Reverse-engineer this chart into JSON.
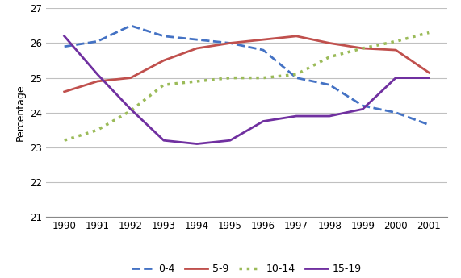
{
  "years": [
    1990,
    1991,
    1992,
    1993,
    1994,
    1995,
    1996,
    1997,
    1998,
    1999,
    2000,
    2001
  ],
  "series": {
    "0-4": [
      25.9,
      26.05,
      26.5,
      26.2,
      26.1,
      26.0,
      25.8,
      25.0,
      24.8,
      24.2,
      24.0,
      23.65
    ],
    "5-9": [
      24.6,
      24.9,
      25.0,
      25.5,
      25.85,
      26.0,
      26.1,
      26.2,
      26.0,
      25.85,
      25.8,
      25.15
    ],
    "10-14": [
      23.2,
      23.5,
      24.05,
      24.8,
      24.9,
      25.0,
      25.0,
      25.1,
      25.6,
      25.85,
      26.05,
      26.3
    ],
    "15-19": [
      26.2,
      25.1,
      24.1,
      23.2,
      23.1,
      23.2,
      23.75,
      23.9,
      23.9,
      24.1,
      25.0,
      25.0
    ]
  },
  "colors": {
    "0-4": "#4472C4",
    "5-9": "#C0504D",
    "10-14": "#9BBB59",
    "15-19": "#7030A0"
  },
  "linestyles": {
    "0-4": "--",
    "5-9": "-",
    "10-14": ":",
    "15-19": "-"
  },
  "linewidths": {
    "0-4": 2.0,
    "5-9": 2.0,
    "10-14": 2.5,
    "15-19": 2.0
  },
  "ylabel": "Percentage",
  "ylim": [
    21,
    27
  ],
  "yticks": [
    21,
    22,
    23,
    24,
    25,
    26,
    27
  ],
  "background_color": "#ffffff",
  "grid_color": "#c0c0c0",
  "legend_order": [
    "0-4",
    "5-9",
    "10-14",
    "15-19"
  ],
  "legend_fontsize": 9,
  "ylabel_fontsize": 9,
  "tick_fontsize": 8.5
}
